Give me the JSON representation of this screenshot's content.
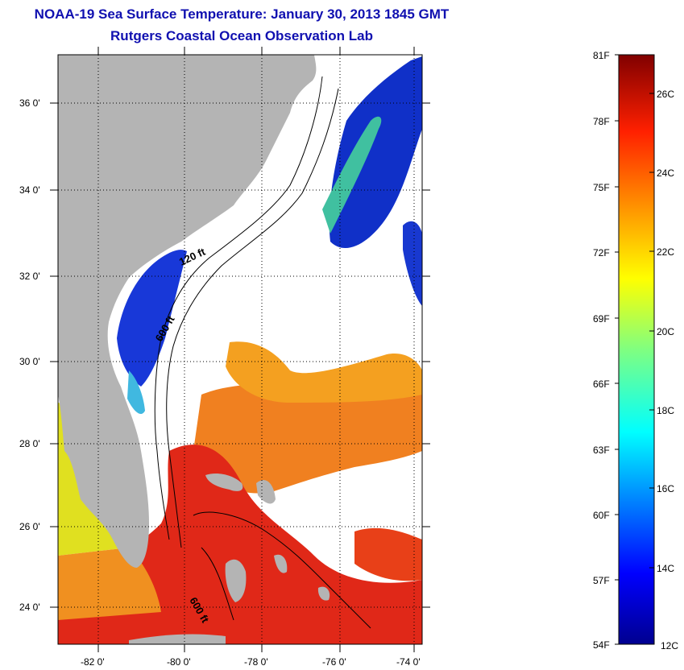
{
  "header": {
    "title": "NOAA-19 Sea Surface Temperature:  January 30, 2013 1845 GMT",
    "subtitle": "Rutgers Coastal Ocean Observation Lab"
  },
  "map": {
    "lon_ticks": [
      "-82 0'",
      "-80 0'",
      "-78 0'",
      "-76 0'",
      "-74 0'"
    ],
    "lat_ticks": [
      "36 0'",
      "34 0'",
      "32 0'",
      "30 0'",
      "28 0'",
      "26 0'",
      "24 0'"
    ],
    "contour_labels": [
      "120 ft",
      "600 ft",
      "600 ft"
    ],
    "colors": {
      "land": "#b4b4b4",
      "cloud": "#ffffff",
      "cold": "#1030d0",
      "warm": "#f07818",
      "hot": "#e02010"
    }
  },
  "colorbar": {
    "fahrenheit_labels": [
      "81F",
      "78F",
      "75F",
      "72F",
      "69F",
      "66F",
      "63F",
      "60F",
      "57F",
      "54F"
    ],
    "celsius_labels": [
      "26C",
      "24C",
      "22C",
      "20C",
      "18C",
      "16C",
      "14C",
      "12C"
    ]
  }
}
